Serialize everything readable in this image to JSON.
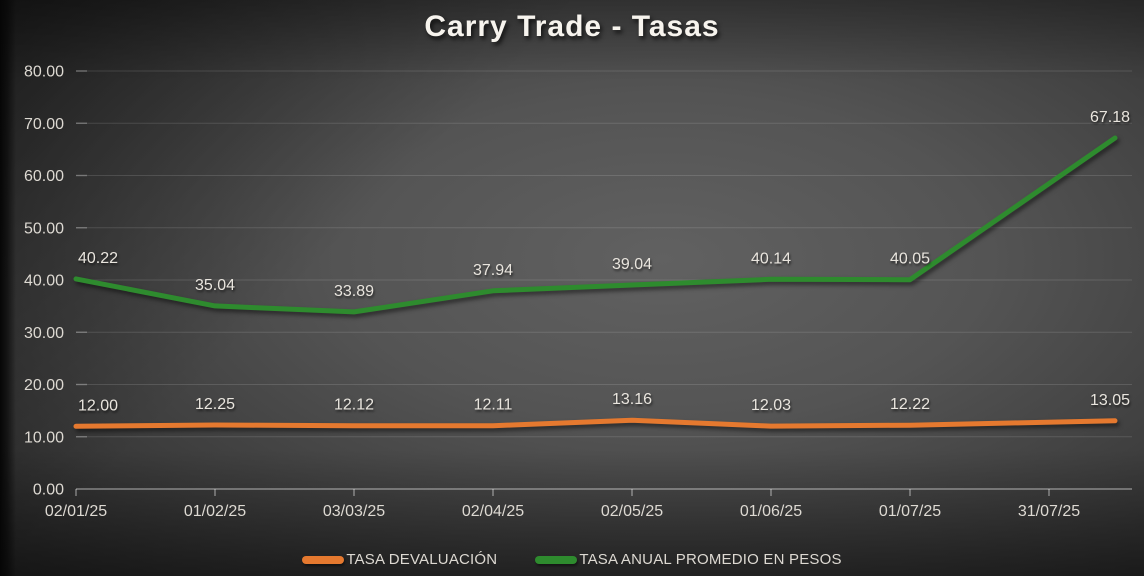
{
  "title": "Carry Trade - Tasas",
  "colors": {
    "title_text": "#f7f4ee",
    "axis_text": "#ddd9d2",
    "data_label_text": "#e9e5de",
    "devaluacion_line": "#e5792f",
    "pesos_line": "#2e8b2e",
    "background_center": "#5e5e5e",
    "background_edge": "#181818"
  },
  "chart_data": {
    "type": "line",
    "title": "Carry Trade - Tasas",
    "categories": [
      "02/01/25",
      "01/02/25",
      "03/03/25",
      "02/04/25",
      "02/05/25",
      "01/06/25",
      "01/07/25",
      "31/07/25"
    ],
    "series": [
      {
        "name": "TASA DEVALUACIÓN",
        "color": "#e5792f",
        "values": [
          12.0,
          12.25,
          12.12,
          12.11,
          13.16,
          12.03,
          12.22,
          13.05
        ]
      },
      {
        "name": "TASA ANUAL PROMEDIO EN PESOS",
        "color": "#2e8b2e",
        "values": [
          40.22,
          35.04,
          33.89,
          37.94,
          39.04,
          40.14,
          40.05,
          67.18
        ]
      }
    ],
    "ylim": [
      0,
      80
    ],
    "ytick_step": 10,
    "y_tick_labels": [
      "0.00",
      "10.00",
      "20.00",
      "30.00",
      "40.00",
      "50.00",
      "60.00",
      "70.00",
      "80.00"
    ],
    "value_decimals": 2,
    "grid": true,
    "legend_position": "bottom",
    "data_labels": true
  }
}
